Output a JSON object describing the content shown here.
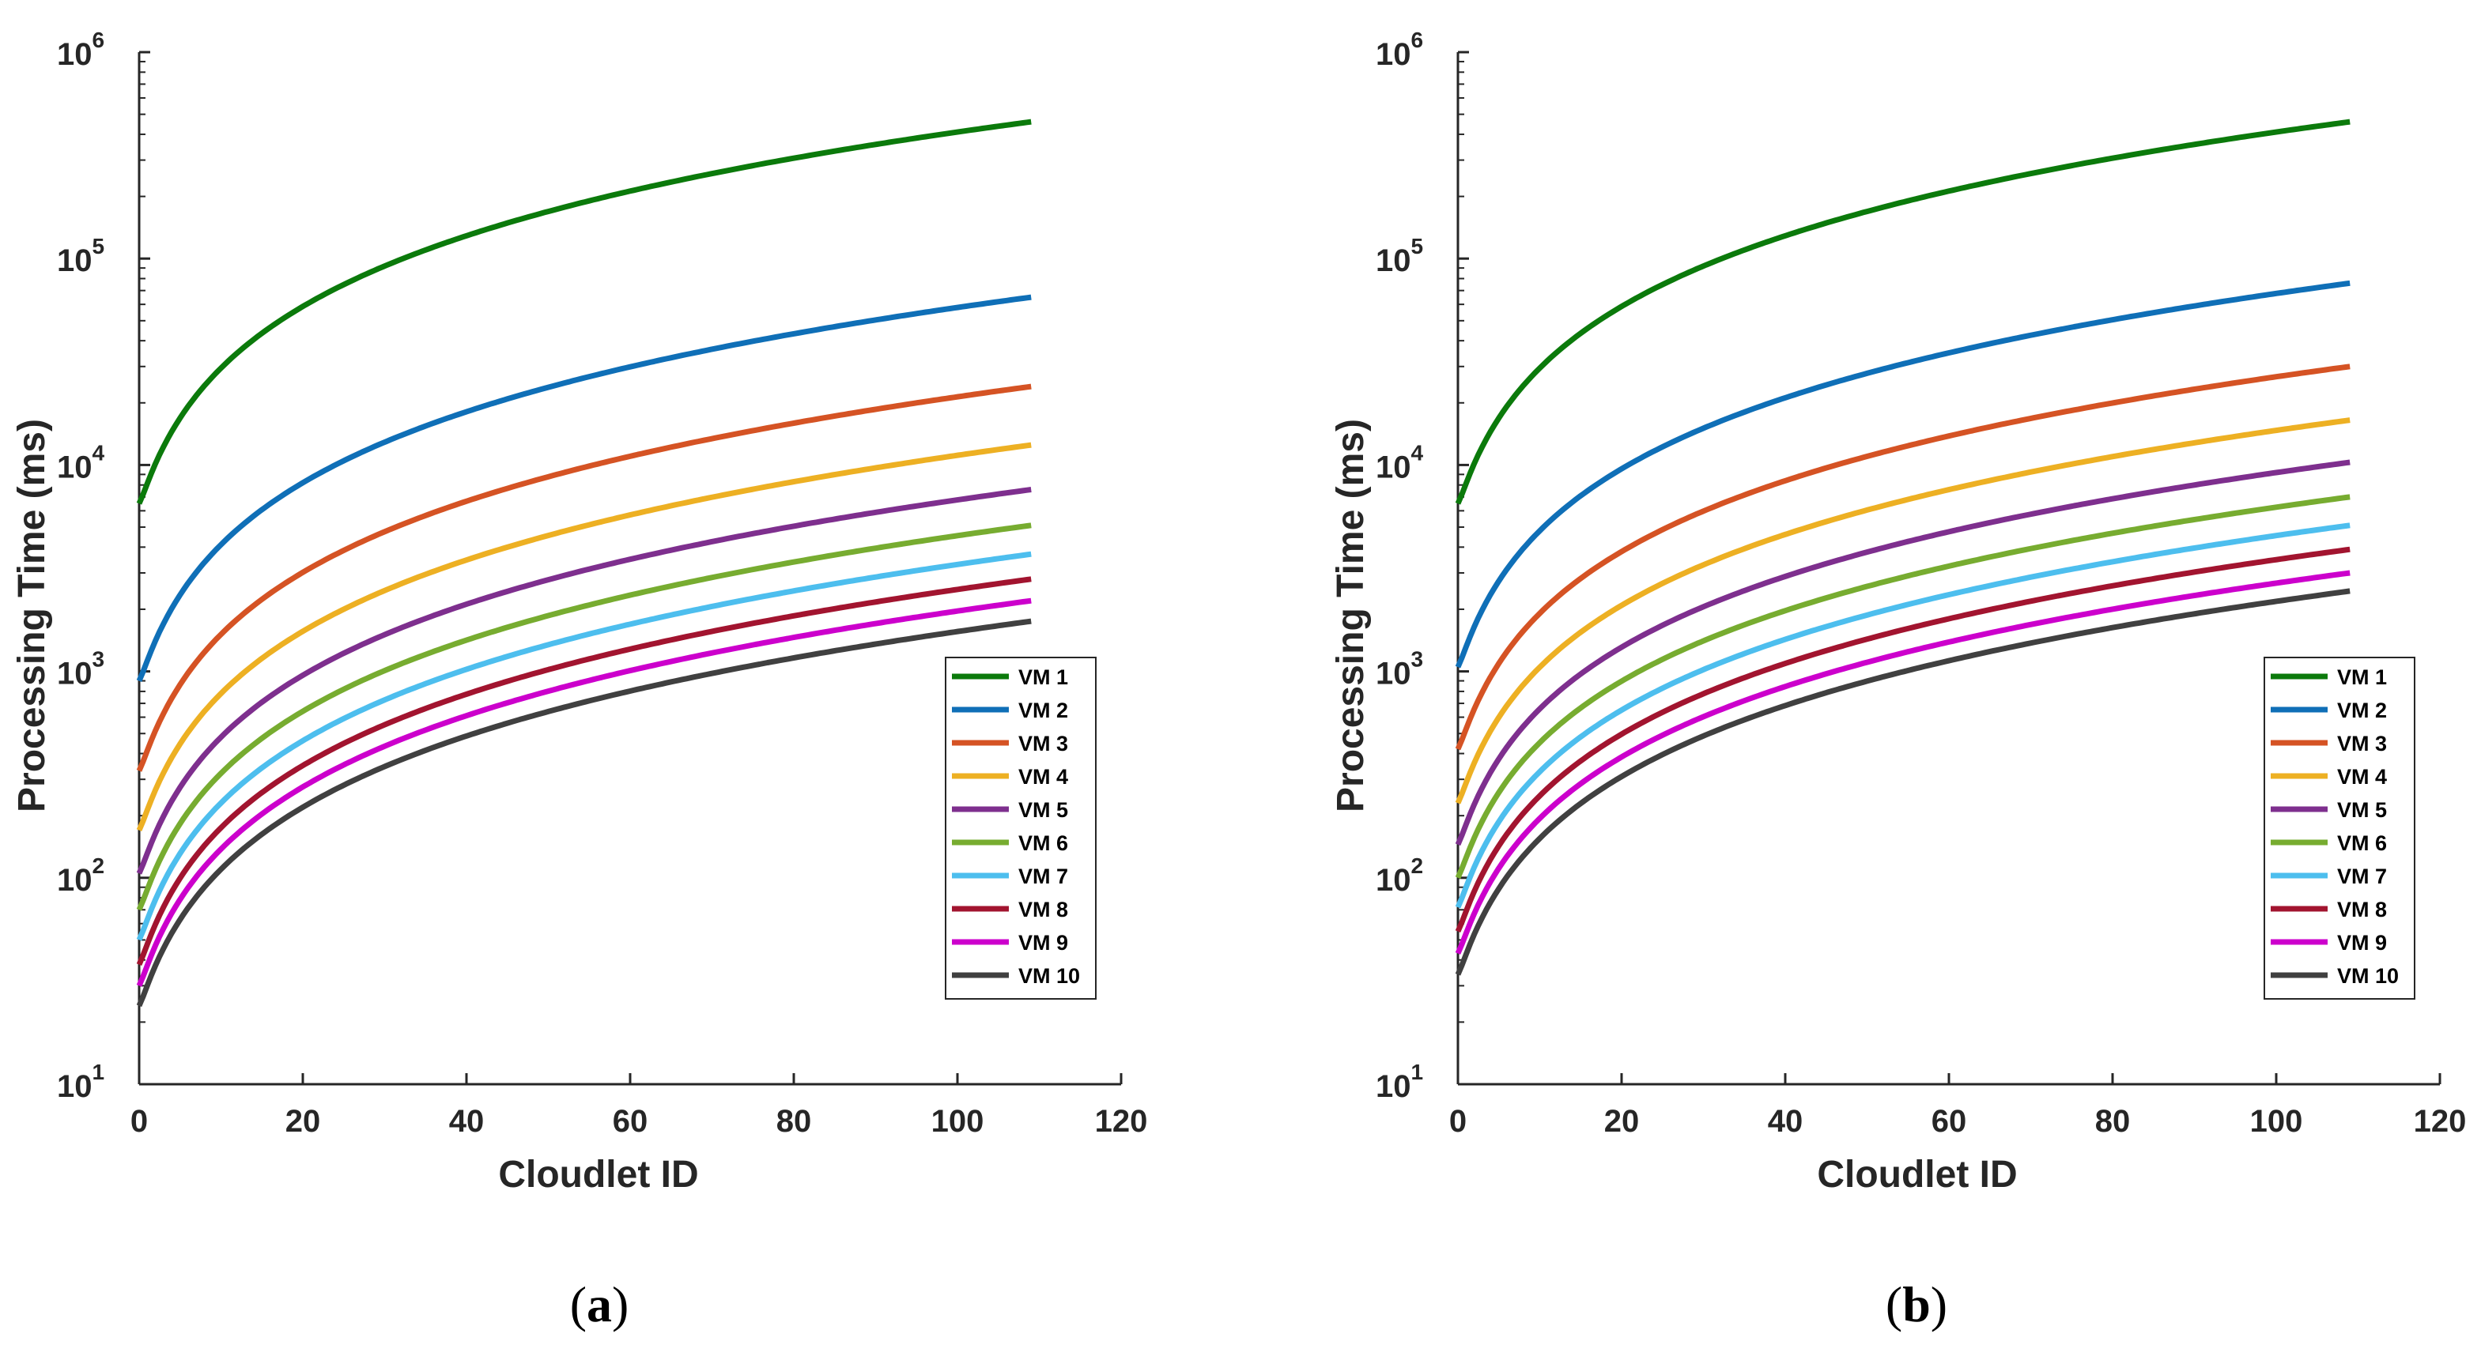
{
  "chart_data": [
    {
      "type": "line",
      "panel": "(a)",
      "panel_letter": "a",
      "xlabel": "Cloudlet ID",
      "ylabel": "Processing Time (ms)",
      "yscale": "log",
      "xlim": [
        0,
        120
      ],
      "ylim": [
        10,
        1000000
      ],
      "xticks": [
        0,
        20,
        40,
        60,
        80,
        100,
        120
      ],
      "yticks": [
        {
          "base": "10",
          "exp": "1"
        },
        {
          "base": "10",
          "exp": "2"
        },
        {
          "base": "10",
          "exp": "3"
        },
        {
          "base": "10",
          "exp": "4"
        },
        {
          "base": "10",
          "exp": "5"
        },
        {
          "base": "10",
          "exp": "6"
        }
      ],
      "legend_position": "lower-right",
      "x_range": [
        0,
        109
      ],
      "series": [
        {
          "name": "VM 1",
          "color": "#0b7a0b",
          "start": 6500,
          "end": 460000
        },
        {
          "name": "VM 2",
          "color": "#0f6fb7",
          "start": 900,
          "end": 65000
        },
        {
          "name": "VM 3",
          "color": "#d55324",
          "start": 330,
          "end": 24000
        },
        {
          "name": "VM 4",
          "color": "#edb023",
          "start": 170,
          "end": 12500
        },
        {
          "name": "VM 5",
          "color": "#7e2f8e",
          "start": 105,
          "end": 7600
        },
        {
          "name": "VM 6",
          "color": "#77ac30",
          "start": 70,
          "end": 5100
        },
        {
          "name": "VM 7",
          "color": "#4dbeee",
          "start": 50,
          "end": 3700
        },
        {
          "name": "VM 8",
          "color": "#a2142f",
          "start": 38,
          "end": 2800
        },
        {
          "name": "VM 9",
          "color": "#cc00cc",
          "start": 30,
          "end": 2200
        },
        {
          "name": "VM 10",
          "color": "#404040",
          "start": 24,
          "end": 1750
        }
      ]
    },
    {
      "type": "line",
      "panel": "(b)",
      "panel_letter": "b",
      "xlabel": "Cloudlet ID",
      "ylabel": "Processing Time (ms)",
      "yscale": "log",
      "xlim": [
        0,
        120
      ],
      "ylim": [
        10,
        1000000
      ],
      "xticks": [
        0,
        20,
        40,
        60,
        80,
        100,
        120
      ],
      "yticks": [
        {
          "base": "10",
          "exp": "1"
        },
        {
          "base": "10",
          "exp": "2"
        },
        {
          "base": "10",
          "exp": "3"
        },
        {
          "base": "10",
          "exp": "4"
        },
        {
          "base": "10",
          "exp": "5"
        },
        {
          "base": "10",
          "exp": "6"
        }
      ],
      "legend_position": "lower-right",
      "x_range": [
        0,
        109
      ],
      "series": [
        {
          "name": "VM 1",
          "color": "#0b7a0b",
          "start": 6500,
          "end": 460000
        },
        {
          "name": "VM 2",
          "color": "#0f6fb7",
          "start": 1050,
          "end": 76000
        },
        {
          "name": "VM 3",
          "color": "#d55324",
          "start": 420,
          "end": 30000
        },
        {
          "name": "VM 4",
          "color": "#edb023",
          "start": 230,
          "end": 16500
        },
        {
          "name": "VM 5",
          "color": "#7e2f8e",
          "start": 145,
          "end": 10300
        },
        {
          "name": "VM 6",
          "color": "#77ac30",
          "start": 100,
          "end": 7000
        },
        {
          "name": "VM 7",
          "color": "#4dbeee",
          "start": 72,
          "end": 5100
        },
        {
          "name": "VM 8",
          "color": "#a2142f",
          "start": 55,
          "end": 3900
        },
        {
          "name": "VM 9",
          "color": "#cc00cc",
          "start": 43,
          "end": 3000
        },
        {
          "name": "VM 10",
          "color": "#404040",
          "start": 34,
          "end": 2450
        }
      ]
    }
  ]
}
